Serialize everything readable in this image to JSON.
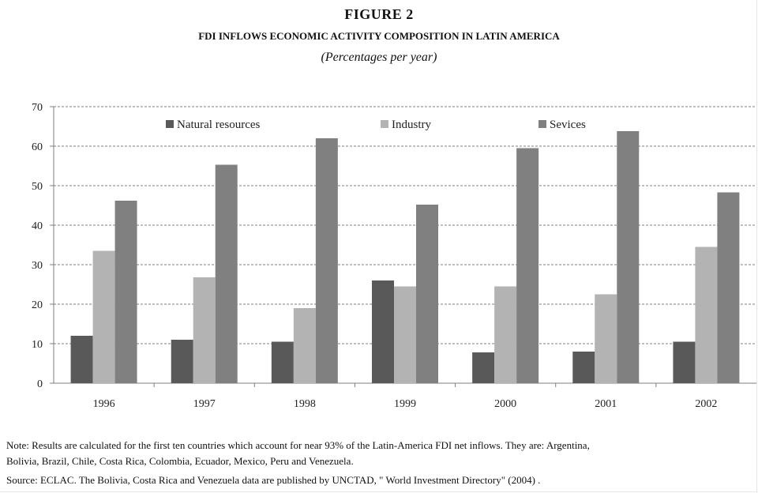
{
  "figure": {
    "label": "FIGURE 2",
    "title": "FDI INFLOWS ECONOMIC ACTIVITY COMPOSITION IN LATIN AMERICA",
    "subtitle": "(Percentages per year)"
  },
  "chart_data": {
    "type": "bar",
    "categories": [
      "1996",
      "1997",
      "1998",
      "1999",
      "2000",
      "2001",
      "2002"
    ],
    "series": [
      {
        "name": "Natural resources",
        "color": "#595959",
        "values": [
          12,
          11,
          10.5,
          26,
          7.8,
          8,
          10.5
        ]
      },
      {
        "name": "Industry",
        "color": "#b3b3b3",
        "values": [
          33.5,
          26.8,
          19,
          24.5,
          24.5,
          22.5,
          34.5
        ]
      },
      {
        "name": "Sevices",
        "color": "#808080",
        "values": [
          46.2,
          55.3,
          62,
          45.2,
          59.5,
          63.8,
          48.3
        ]
      }
    ],
    "ylim": [
      0,
      70
    ],
    "yticks": [
      "0",
      "10",
      "20",
      "30",
      "40",
      "50",
      "60",
      "70"
    ],
    "grid": true,
    "legend": "top"
  },
  "notes": {
    "note_line1": "Note:  Results are calculated for the first ten countries which  account for near  93% of the Latin-America FDI net inflows. They are: Argentina,",
    "note_line2": "Bolivia, Brazil, Chile, Costa Rica, Colombia, Ecuador, Mexico, Peru and Venezuela.",
    "source": "Source: ECLAC. The Bolivia, Costa Rica and Venezuela data are published by UNCTAD, \" World Investment Directory\" (2004) ."
  }
}
